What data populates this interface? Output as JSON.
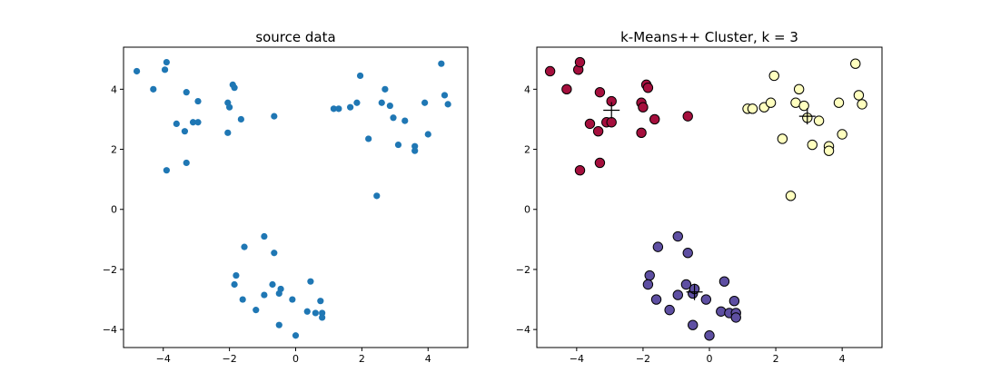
{
  "chart_data": [
    {
      "type": "scatter",
      "title": "source data",
      "xlabel": "",
      "ylabel": "",
      "xlim": [
        -5.2,
        5.2
      ],
      "ylim": [
        -4.6,
        5.4
      ],
      "xticks": [
        -4,
        -2,
        0,
        2,
        4
      ],
      "yticks": [
        -4,
        -2,
        0,
        2,
        4
      ],
      "grid": false,
      "colors": {
        "point": "#1f77b4"
      },
      "series": [
        {
          "points": [
            [
              -4.8,
              4.6
            ],
            [
              -4.3,
              4.0
            ],
            [
              -3.95,
              4.65
            ],
            [
              -3.9,
              4.9
            ],
            [
              -3.9,
              1.3
            ],
            [
              -3.6,
              2.85
            ],
            [
              -3.35,
              2.6
            ],
            [
              -3.3,
              3.9
            ],
            [
              -3.3,
              1.55
            ],
            [
              -3.1,
              2.9
            ],
            [
              -2.95,
              3.6
            ],
            [
              -2.95,
              2.9
            ],
            [
              -2.05,
              3.55
            ],
            [
              -2.05,
              2.55
            ],
            [
              -2.0,
              3.4
            ],
            [
              -1.9,
              4.15
            ],
            [
              -1.85,
              4.05
            ],
            [
              -1.65,
              3.0
            ],
            [
              -0.65,
              3.1
            ],
            [
              1.15,
              3.35
            ],
            [
              1.3,
              3.35
            ],
            [
              1.65,
              3.4
            ],
            [
              1.85,
              3.55
            ],
            [
              1.95,
              4.45
            ],
            [
              2.2,
              2.35
            ],
            [
              2.45,
              0.45
            ],
            [
              2.6,
              3.55
            ],
            [
              2.7,
              4.0
            ],
            [
              2.85,
              3.45
            ],
            [
              2.95,
              3.05
            ],
            [
              3.1,
              2.15
            ],
            [
              3.3,
              2.95
            ],
            [
              3.6,
              2.1
            ],
            [
              3.6,
              1.95
            ],
            [
              3.9,
              3.55
            ],
            [
              4.0,
              2.5
            ],
            [
              4.4,
              4.85
            ],
            [
              4.5,
              3.8
            ],
            [
              4.6,
              3.5
            ],
            [
              -1.55,
              -1.25
            ],
            [
              -1.8,
              -2.2
            ],
            [
              -1.85,
              -2.5
            ],
            [
              -1.6,
              -3.0
            ],
            [
              -1.2,
              -3.35
            ],
            [
              -0.95,
              -0.9
            ],
            [
              -0.95,
              -2.85
            ],
            [
              -0.7,
              -2.5
            ],
            [
              -0.65,
              -1.45
            ],
            [
              -0.5,
              -2.8
            ],
            [
              -0.45,
              -2.65
            ],
            [
              -0.5,
              -3.85
            ],
            [
              -0.1,
              -3.0
            ],
            [
              0.0,
              -4.2
            ],
            [
              0.35,
              -3.4
            ],
            [
              0.45,
              -2.4
            ],
            [
              0.6,
              -3.45
            ],
            [
              0.75,
              -3.05
            ],
            [
              0.8,
              -3.45
            ],
            [
              0.8,
              -3.6
            ]
          ]
        }
      ]
    },
    {
      "type": "scatter",
      "title": "k-Means++ Cluster, k = 3",
      "xlabel": "",
      "ylabel": "",
      "xlim": [
        -5.2,
        5.2
      ],
      "ylim": [
        -4.6,
        5.4
      ],
      "xticks": [
        -4,
        -2,
        0,
        2,
        4
      ],
      "yticks": [
        -4,
        -2,
        0,
        2,
        4
      ],
      "grid": false,
      "colors": {
        "edge": "#000000",
        "centroid": "#000000"
      },
      "series": [
        {
          "color": "#a50f3d",
          "points": [
            [
              -4.8,
              4.6
            ],
            [
              -4.3,
              4.0
            ],
            [
              -3.95,
              4.65
            ],
            [
              -3.9,
              4.9
            ],
            [
              -3.9,
              1.3
            ],
            [
              -3.6,
              2.85
            ],
            [
              -3.35,
              2.6
            ],
            [
              -3.3,
              3.9
            ],
            [
              -3.3,
              1.55
            ],
            [
              -3.1,
              2.9
            ],
            [
              -2.95,
              3.6
            ],
            [
              -2.95,
              2.9
            ],
            [
              -2.05,
              3.55
            ],
            [
              -2.05,
              2.55
            ],
            [
              -2.0,
              3.4
            ],
            [
              -1.9,
              4.15
            ],
            [
              -1.85,
              4.05
            ],
            [
              -1.65,
              3.0
            ],
            [
              -0.65,
              3.1
            ]
          ],
          "centroid": [
            -2.95,
            3.3
          ]
        },
        {
          "color": "#ffffbf",
          "points": [
            [
              1.15,
              3.35
            ],
            [
              1.3,
              3.35
            ],
            [
              1.65,
              3.4
            ],
            [
              1.85,
              3.55
            ],
            [
              1.95,
              4.45
            ],
            [
              2.2,
              2.35
            ],
            [
              2.45,
              0.45
            ],
            [
              2.6,
              3.55
            ],
            [
              2.7,
              4.0
            ],
            [
              2.85,
              3.45
            ],
            [
              2.95,
              3.05
            ],
            [
              3.1,
              2.15
            ],
            [
              3.3,
              2.95
            ],
            [
              3.6,
              2.1
            ],
            [
              3.6,
              1.95
            ],
            [
              3.9,
              3.55
            ],
            [
              4.0,
              2.5
            ],
            [
              4.4,
              4.85
            ],
            [
              4.5,
              3.8
            ],
            [
              4.6,
              3.5
            ]
          ],
          "centroid": [
            2.95,
            3.1
          ]
        },
        {
          "color": "#5e4fa2",
          "points": [
            [
              -1.55,
              -1.25
            ],
            [
              -1.8,
              -2.2
            ],
            [
              -1.85,
              -2.5
            ],
            [
              -1.6,
              -3.0
            ],
            [
              -1.2,
              -3.35
            ],
            [
              -0.95,
              -0.9
            ],
            [
              -0.95,
              -2.85
            ],
            [
              -0.7,
              -2.5
            ],
            [
              -0.65,
              -1.45
            ],
            [
              -0.5,
              -2.8
            ],
            [
              -0.45,
              -2.65
            ],
            [
              -0.5,
              -3.85
            ],
            [
              -0.1,
              -3.0
            ],
            [
              0.0,
              -4.2
            ],
            [
              0.35,
              -3.4
            ],
            [
              0.45,
              -2.4
            ],
            [
              0.6,
              -3.45
            ],
            [
              0.75,
              -3.05
            ],
            [
              0.8,
              -3.45
            ],
            [
              0.8,
              -3.6
            ]
          ],
          "centroid": [
            -0.45,
            -2.75
          ]
        }
      ]
    }
  ]
}
